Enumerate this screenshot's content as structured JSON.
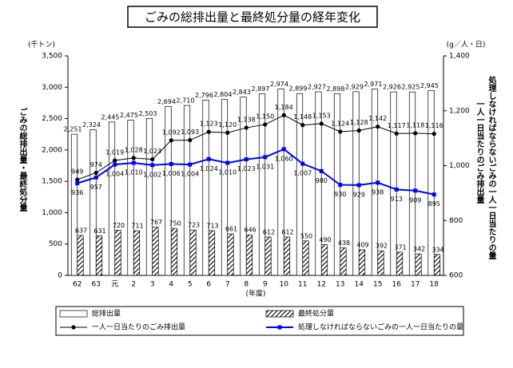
{
  "chart_data": {
    "type": "bar",
    "title": "ごみの総排出量と最終処分量の経年変化",
    "y_unit": "(千トン)",
    "y2_unit": "(g／人・日)",
    "y_label": "ごみの総排出量・最終処分量",
    "y2_labels": [
      "一人一日当たりのごみ排出量",
      "処理しなければならないごみの一人一日当たりの量"
    ],
    "x_label": "(年度)",
    "categories": [
      "62",
      "63",
      "元",
      "2",
      "3",
      "4",
      "5",
      "6",
      "7",
      "8",
      "9",
      "10",
      "11",
      "12",
      "13",
      "14",
      "15",
      "16",
      "17",
      "18"
    ],
    "ylim": [
      0,
      3500
    ],
    "yticks": [
      0,
      500,
      {
        "value": 1000,
        "label": "1,000"
      },
      {
        "value": 1500,
        "label": "1,500"
      },
      {
        "value": 2000,
        "label": "2,000"
      },
      {
        "value": 2500,
        "label": "2,500"
      },
      {
        "value": 3000,
        "label": "3,000"
      },
      {
        "value": 3500,
        "label": "3,500"
      }
    ],
    "y2lim": [
      600,
      1400
    ],
    "y2ticks": [
      600,
      800,
      {
        "value": 1000,
        "label": "1,000"
      },
      {
        "value": 1200,
        "label": "1,200"
      },
      {
        "value": 1400,
        "label": "1,400"
      }
    ],
    "grid": false,
    "series": [
      {
        "name": "総排出量",
        "type": "bar",
        "color": "#ffffff",
        "values": [
          2251,
          2324,
          2445,
          2475,
          2503,
          2694,
          2710,
          2796,
          2804,
          2843,
          2897,
          2974,
          2899,
          2927,
          2898,
          2929,
          2971,
          2926,
          2925,
          2945
        ],
        "value_labels": [
          "2,251",
          "2,324",
          "2,445",
          "2,475",
          "2,503",
          "2,694",
          "2,710",
          "2,796",
          "2,804",
          "2,843",
          "2,897",
          "2,974",
          "2,899",
          "2,927",
          "2,898",
          "2,929",
          "2,971",
          "2,926",
          "2,925",
          "2,945"
        ]
      },
      {
        "name": "最終処分量",
        "type": "bar",
        "color": "#000000",
        "hatch": true,
        "values": [
          637,
          631,
          720,
          711,
          767,
          750,
          723,
          713,
          661,
          646,
          612,
          612,
          550,
          490,
          438,
          409,
          392,
          371,
          342,
          334
        ]
      },
      {
        "name": "一人一日当たりのごみ排出量",
        "type": "line",
        "axis": "y2",
        "color": "#000000",
        "values": [
          949,
          974,
          1019,
          1028,
          1023,
          1092,
          1093,
          1123,
          1120,
          1138,
          1150,
          1184,
          1148,
          1153,
          1124,
          1128,
          1142,
          1117,
          1118,
          1116
        ],
        "value_labels": [
          "949",
          "974",
          "1,019",
          "1,028",
          "1,023",
          "1,092",
          "1,093",
          "1,123",
          "1,120",
          "1,138",
          "1,150",
          "1,184",
          "1,148",
          "1,153",
          "1,124",
          "1,128",
          "1,142",
          "1,117",
          "1,118",
          "1,116"
        ]
      },
      {
        "name": "処理しなければならないごみの一人一日当たりの量",
        "type": "line",
        "axis": "y2",
        "color": "#0000ff",
        "values": [
          936,
          957,
          1004,
          1010,
          1002,
          1006,
          1004,
          1024,
          1010,
          1023,
          1031,
          1060,
          1007,
          980,
          930,
          929,
          938,
          913,
          909,
          895
        ],
        "value_labels": [
          "936",
          "957",
          "1,004",
          "1,010",
          "1,002",
          "1,006",
          "1,004",
          "1,024",
          "1,010",
          "1,023",
          "1,031",
          "1,060",
          "1,007",
          "980",
          "930",
          "929",
          "938",
          "913",
          "909",
          "895"
        ]
      }
    ]
  }
}
